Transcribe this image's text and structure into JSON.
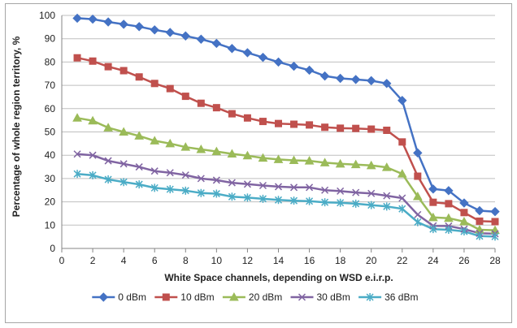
{
  "chart_data": {
    "type": "line",
    "title": "",
    "xlabel": "White Space channels, depending on WSD e.i.r.p.",
    "ylabel": "Percentage of whole region territory, %",
    "xlim": [
      0,
      28
    ],
    "ylim": [
      0,
      100
    ],
    "xticks": [
      0,
      2,
      4,
      6,
      8,
      10,
      12,
      14,
      16,
      18,
      20,
      22,
      24,
      26,
      28
    ],
    "yticks": [
      0,
      10,
      20,
      30,
      40,
      50,
      60,
      70,
      80,
      90,
      100
    ],
    "grid": "horizontal",
    "legend_position": "bottom",
    "x": [
      1,
      2,
      3,
      4,
      5,
      6,
      7,
      8,
      9,
      10,
      11,
      12,
      13,
      14,
      15,
      16,
      17,
      18,
      19,
      20,
      21,
      22,
      23,
      24,
      25,
      26,
      27,
      28
    ],
    "series": [
      {
        "name": "0 dBm",
        "color": "#4472c4",
        "marker": "diamond",
        "values": [
          98.8,
          98.4,
          97.2,
          96.2,
          95.2,
          93.8,
          92.7,
          91.2,
          89.8,
          88.0,
          85.8,
          84.0,
          82.0,
          80.0,
          78.2,
          76.5,
          74.0,
          73.0,
          72.5,
          72.0,
          70.8,
          63.5,
          41.0,
          25.5,
          24.8,
          19.5,
          16.2,
          15.8
        ]
      },
      {
        "name": "10 dBm",
        "color": "#c0504d",
        "marker": "square",
        "values": [
          81.8,
          80.4,
          78.0,
          76.3,
          73.6,
          70.8,
          68.6,
          65.3,
          62.3,
          60.4,
          57.8,
          56.0,
          54.5,
          53.6,
          53.3,
          53.0,
          52.0,
          51.6,
          51.5,
          51.2,
          50.7,
          45.7,
          31.0,
          19.8,
          19.2,
          15.4,
          11.7,
          11.5
        ]
      },
      {
        "name": "20 dBm",
        "color": "#9bbb59",
        "marker": "triangle",
        "values": [
          56.0,
          54.8,
          51.8,
          50.0,
          48.3,
          46.2,
          45.0,
          43.5,
          42.5,
          41.6,
          40.6,
          39.8,
          38.8,
          38.2,
          37.8,
          37.6,
          36.8,
          36.3,
          36.0,
          35.6,
          34.8,
          32.0,
          22.3,
          13.3,
          13.0,
          11.5,
          8.0,
          7.8
        ]
      },
      {
        "name": "30 dBm",
        "color": "#8064a2",
        "marker": "x",
        "values": [
          40.5,
          40.0,
          37.6,
          36.3,
          35.0,
          33.2,
          32.5,
          31.5,
          30.0,
          29.3,
          28.2,
          27.6,
          27.0,
          26.5,
          26.2,
          26.2,
          25.0,
          24.6,
          24.0,
          23.6,
          22.6,
          21.6,
          14.5,
          9.7,
          9.6,
          8.3,
          6.5,
          6.3
        ]
      },
      {
        "name": "36 dBm",
        "color": "#4bacc6",
        "marker": "star",
        "values": [
          32.0,
          31.4,
          29.6,
          28.5,
          27.5,
          26.0,
          25.4,
          24.8,
          23.8,
          23.5,
          22.2,
          21.8,
          21.3,
          20.8,
          20.5,
          20.3,
          19.8,
          19.6,
          19.2,
          18.6,
          18.0,
          17.0,
          11.3,
          8.3,
          8.0,
          7.3,
          5.3,
          5.1
        ]
      }
    ]
  }
}
